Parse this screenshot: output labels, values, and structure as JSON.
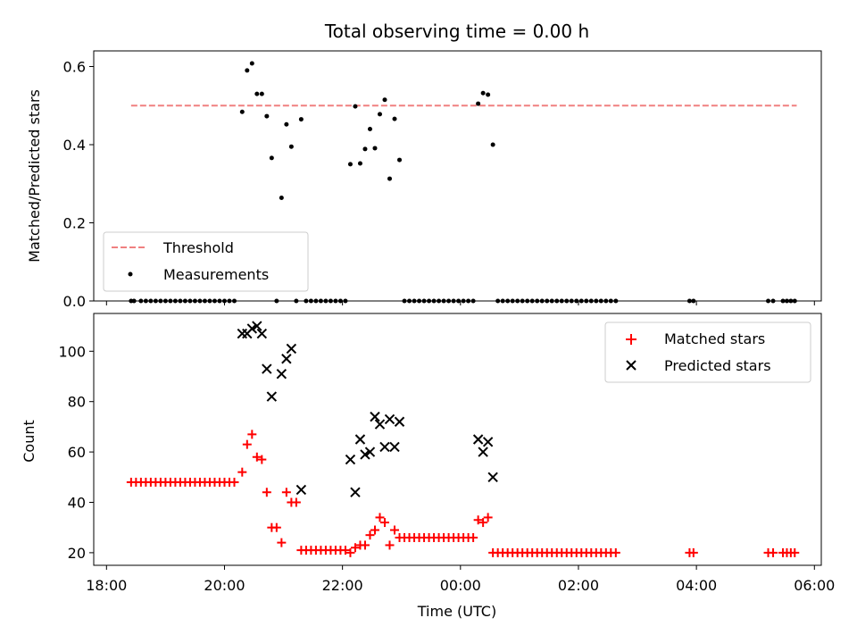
{
  "chart_data": [
    {
      "type": "scatter",
      "title": "Total observing time = 0.00 h",
      "xlabel": "",
      "ylabel": "Matched/Predicted stars",
      "x_axis": "time (UTC), datetime; shared with lower panel",
      "xlim": [
        "18:00",
        "06:00"
      ],
      "ylim": [
        0,
        0.64
      ],
      "yticks": [
        0.0,
        0.2,
        0.4,
        0.6
      ],
      "ytick_labels": [
        "0.0",
        "0.2",
        "0.4",
        "0.6"
      ],
      "legend": {
        "location": "lower left",
        "entries": [
          "Threshold",
          "Measurements"
        ]
      },
      "threshold": {
        "name": "Threshold",
        "value": 0.5,
        "x_start": "18:25",
        "x_end": "05:42",
        "color": "#f08080",
        "style": "dashed"
      },
      "series": [
        {
          "name": "Measurements",
          "color": "#000000",
          "marker": "dot",
          "points": [
            [
              "18:25",
              0
            ],
            [
              "18:28",
              0
            ],
            [
              "18:35",
              0
            ],
            [
              "18:40",
              0
            ],
            [
              "18:45",
              0
            ],
            [
              "18:50",
              0
            ],
            [
              "18:55",
              0
            ],
            [
              "19:00",
              0
            ],
            [
              "19:05",
              0
            ],
            [
              "19:10",
              0
            ],
            [
              "19:15",
              0
            ],
            [
              "19:20",
              0
            ],
            [
              "19:25",
              0
            ],
            [
              "19:30",
              0
            ],
            [
              "19:35",
              0
            ],
            [
              "19:40",
              0
            ],
            [
              "19:45",
              0
            ],
            [
              "19:50",
              0
            ],
            [
              "19:55",
              0
            ],
            [
              "20:00",
              0
            ],
            [
              "20:05",
              0
            ],
            [
              "20:10",
              0
            ],
            [
              "20:18",
              0.484
            ],
            [
              "20:23",
              0.59
            ],
            [
              "20:28",
              0.608
            ],
            [
              "20:33",
              0.53
            ],
            [
              "20:38",
              0.53
            ],
            [
              "20:43",
              0.473
            ],
            [
              "20:48",
              0.366
            ],
            [
              "20:53",
              0.0
            ],
            [
              "20:58",
              0.264
            ],
            [
              "21:03",
              0.452
            ],
            [
              "21:08",
              0.395
            ],
            [
              "21:13",
              0.0
            ],
            [
              "21:18",
              0.465
            ],
            [
              "21:23",
              0.0
            ],
            [
              "21:28",
              0.0
            ],
            [
              "21:33",
              0.0
            ],
            [
              "21:38",
              0.0
            ],
            [
              "21:43",
              0.0
            ],
            [
              "21:48",
              0.0
            ],
            [
              "21:53",
              0.0
            ],
            [
              "21:58",
              0.0
            ],
            [
              "22:03",
              0.0
            ],
            [
              "22:08",
              0.35
            ],
            [
              "22:13",
              0.498
            ],
            [
              "22:18",
              0.352
            ],
            [
              "22:23",
              0.389
            ],
            [
              "22:28",
              0.44
            ],
            [
              "22:33",
              0.391
            ],
            [
              "22:38",
              0.478
            ],
            [
              "22:43",
              0.515
            ],
            [
              "22:48",
              0.313
            ],
            [
              "22:53",
              0.466
            ],
            [
              "22:58",
              0.361
            ],
            [
              "23:03",
              0
            ],
            [
              "23:08",
              0
            ],
            [
              "23:13",
              0
            ],
            [
              "23:18",
              0
            ],
            [
              "23:23",
              0
            ],
            [
              "23:28",
              0
            ],
            [
              "23:33",
              0
            ],
            [
              "23:38",
              0
            ],
            [
              "23:43",
              0
            ],
            [
              "23:48",
              0
            ],
            [
              "23:53",
              0
            ],
            [
              "23:58",
              0
            ],
            [
              "00:03",
              0
            ],
            [
              "00:08",
              0
            ],
            [
              "00:13",
              0
            ],
            [
              "00:18",
              0.505
            ],
            [
              "00:23",
              0.532
            ],
            [
              "00:28",
              0.528
            ],
            [
              "00:33",
              0.4
            ],
            [
              "00:38",
              0
            ],
            [
              "00:43",
              0
            ],
            [
              "00:48",
              0
            ],
            [
              "00:53",
              0
            ],
            [
              "00:58",
              0
            ],
            [
              "01:03",
              0
            ],
            [
              "01:08",
              0
            ],
            [
              "01:13",
              0
            ],
            [
              "01:18",
              0
            ],
            [
              "01:23",
              0
            ],
            [
              "01:28",
              0
            ],
            [
              "01:33",
              0
            ],
            [
              "01:38",
              0
            ],
            [
              "01:43",
              0
            ],
            [
              "01:48",
              0
            ],
            [
              "01:53",
              0
            ],
            [
              "01:58",
              0
            ],
            [
              "02:03",
              0
            ],
            [
              "02:08",
              0
            ],
            [
              "02:13",
              0
            ],
            [
              "02:18",
              0
            ],
            [
              "02:23",
              0
            ],
            [
              "02:28",
              0
            ],
            [
              "02:33",
              0
            ],
            [
              "02:38",
              0
            ],
            [
              "03:53",
              0
            ],
            [
              "03:57",
              0
            ],
            [
              "05:13",
              0
            ],
            [
              "05:18",
              0
            ],
            [
              "05:28",
              0
            ],
            [
              "05:32",
              0
            ],
            [
              "05:36",
              0
            ],
            [
              "05:40",
              0
            ]
          ]
        }
      ]
    },
    {
      "type": "scatter",
      "title": "",
      "xlabel": "Time (UTC)",
      "ylabel": "Count",
      "xlim": [
        "18:00",
        "06:00"
      ],
      "xticks": [
        "18:00",
        "20:00",
        "22:00",
        "00:00",
        "02:00",
        "04:00",
        "06:00"
      ],
      "ylim": [
        15,
        115
      ],
      "yticks": [
        20,
        40,
        60,
        80,
        100
      ],
      "legend": {
        "location": "upper right",
        "entries": [
          "Matched stars",
          "Predicted stars"
        ]
      },
      "series": [
        {
          "name": "Matched stars",
          "color": "#ff0000",
          "marker": "plus",
          "points": [
            [
              "18:25",
              48
            ],
            [
              "18:30",
              48
            ],
            [
              "18:35",
              48
            ],
            [
              "18:40",
              48
            ],
            [
              "18:45",
              48
            ],
            [
              "18:50",
              48
            ],
            [
              "18:55",
              48
            ],
            [
              "19:00",
              48
            ],
            [
              "19:05",
              48
            ],
            [
              "19:10",
              48
            ],
            [
              "19:15",
              48
            ],
            [
              "19:20",
              48
            ],
            [
              "19:25",
              48
            ],
            [
              "19:30",
              48
            ],
            [
              "19:35",
              48
            ],
            [
              "19:40",
              48
            ],
            [
              "19:45",
              48
            ],
            [
              "19:50",
              48
            ],
            [
              "19:55",
              48
            ],
            [
              "20:00",
              48
            ],
            [
              "20:05",
              48
            ],
            [
              "20:10",
              48
            ],
            [
              "20:18",
              52
            ],
            [
              "20:23",
              63
            ],
            [
              "20:28",
              67
            ],
            [
              "20:33",
              58
            ],
            [
              "20:38",
              57
            ],
            [
              "20:43",
              44
            ],
            [
              "20:48",
              30
            ],
            [
              "20:53",
              30
            ],
            [
              "20:58",
              24
            ],
            [
              "21:03",
              44
            ],
            [
              "21:08",
              40
            ],
            [
              "21:13",
              40
            ],
            [
              "21:18",
              21
            ],
            [
              "21:23",
              21
            ],
            [
              "21:28",
              21
            ],
            [
              "21:33",
              21
            ],
            [
              "21:38",
              21
            ],
            [
              "21:43",
              21
            ],
            [
              "21:48",
              21
            ],
            [
              "21:53",
              21
            ],
            [
              "21:58",
              21
            ],
            [
              "22:03",
              21
            ],
            [
              "22:08",
              20
            ],
            [
              "22:13",
              22
            ],
            [
              "22:18",
              23
            ],
            [
              "22:23",
              23
            ],
            [
              "22:28",
              27
            ],
            [
              "22:33",
              29
            ],
            [
              "22:38",
              34
            ],
            [
              "22:43",
              32
            ],
            [
              "22:48",
              23
            ],
            [
              "22:53",
              29
            ],
            [
              "22:58",
              26
            ],
            [
              "23:03",
              26
            ],
            [
              "23:08",
              26
            ],
            [
              "23:13",
              26
            ],
            [
              "23:18",
              26
            ],
            [
              "23:23",
              26
            ],
            [
              "23:28",
              26
            ],
            [
              "23:33",
              26
            ],
            [
              "23:38",
              26
            ],
            [
              "23:43",
              26
            ],
            [
              "23:48",
              26
            ],
            [
              "23:53",
              26
            ],
            [
              "23:58",
              26
            ],
            [
              "00:03",
              26
            ],
            [
              "00:08",
              26
            ],
            [
              "00:13",
              26
            ],
            [
              "00:18",
              33
            ],
            [
              "00:23",
              32
            ],
            [
              "00:28",
              34
            ],
            [
              "00:33",
              20
            ],
            [
              "00:38",
              20
            ],
            [
              "00:43",
              20
            ],
            [
              "00:48",
              20
            ],
            [
              "00:53",
              20
            ],
            [
              "00:58",
              20
            ],
            [
              "01:03",
              20
            ],
            [
              "01:08",
              20
            ],
            [
              "01:13",
              20
            ],
            [
              "01:18",
              20
            ],
            [
              "01:23",
              20
            ],
            [
              "01:28",
              20
            ],
            [
              "01:33",
              20
            ],
            [
              "01:38",
              20
            ],
            [
              "01:43",
              20
            ],
            [
              "01:48",
              20
            ],
            [
              "01:53",
              20
            ],
            [
              "01:58",
              20
            ],
            [
              "02:03",
              20
            ],
            [
              "02:08",
              20
            ],
            [
              "02:13",
              20
            ],
            [
              "02:18",
              20
            ],
            [
              "02:23",
              20
            ],
            [
              "02:28",
              20
            ],
            [
              "02:33",
              20
            ],
            [
              "02:38",
              20
            ],
            [
              "03:53",
              20
            ],
            [
              "03:57",
              20
            ],
            [
              "05:13",
              20
            ],
            [
              "05:18",
              20
            ],
            [
              "05:28",
              20
            ],
            [
              "05:32",
              20
            ],
            [
              "05:36",
              20
            ],
            [
              "05:40",
              20
            ]
          ]
        },
        {
          "name": "Predicted stars",
          "color": "#000000",
          "marker": "x",
          "points": [
            [
              "20:18",
              107
            ],
            [
              "20:23",
              107
            ],
            [
              "20:28",
              109
            ],
            [
              "20:33",
              110
            ],
            [
              "20:38",
              107
            ],
            [
              "20:43",
              93
            ],
            [
              "20:48",
              82
            ],
            [
              "20:58",
              91
            ],
            [
              "21:03",
              97
            ],
            [
              "21:08",
              101
            ],
            [
              "21:18",
              45
            ],
            [
              "22:08",
              57
            ],
            [
              "22:13",
              44
            ],
            [
              "22:18",
              65
            ],
            [
              "22:23",
              59
            ],
            [
              "22:28",
              60
            ],
            [
              "22:33",
              74
            ],
            [
              "22:38",
              71
            ],
            [
              "22:43",
              62
            ],
            [
              "22:48",
              73
            ],
            [
              "22:53",
              62
            ],
            [
              "22:58",
              72
            ],
            [
              "00:18",
              65
            ],
            [
              "00:23",
              60
            ],
            [
              "00:28",
              64
            ],
            [
              "00:33",
              50
            ]
          ]
        }
      ]
    }
  ]
}
